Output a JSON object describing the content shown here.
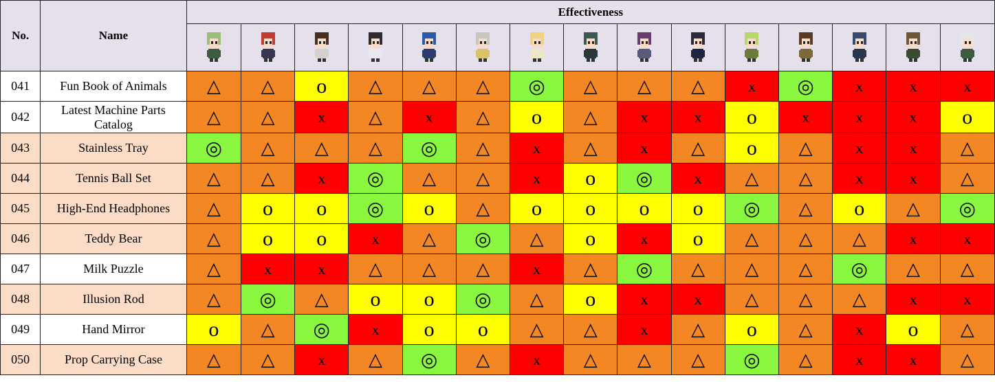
{
  "header": {
    "no": "No.",
    "name": "Name",
    "effectiveness": "Effectiveness"
  },
  "characters": [
    {
      "icon": "character-1-icon",
      "hair": "#9bbd7a",
      "outfit": "#3f5b3f"
    },
    {
      "icon": "character-2-icon",
      "hair": "#c43a31",
      "outfit": "#3a3550"
    },
    {
      "icon": "character-3-icon",
      "hair": "#4a2e22",
      "outfit": "#d8d0cc"
    },
    {
      "icon": "character-4-icon",
      "hair": "#2f2a30",
      "outfit": "#e9e9ef"
    },
    {
      "icon": "character-5-icon",
      "hair": "#2c58a8",
      "outfit": "#2b3b6b"
    },
    {
      "icon": "character-6-icon",
      "hair": "#c9c6c1",
      "outfit": "#d9c26a"
    },
    {
      "icon": "character-7-icon",
      "hair": "#f1d37e",
      "outfit": "#efe6c8"
    },
    {
      "icon": "character-8-icon",
      "hair": "#3b5a55",
      "outfit": "#2a3838"
    },
    {
      "icon": "character-9-icon",
      "hair": "#6a3b6e",
      "outfit": "#5a5a7a"
    },
    {
      "icon": "character-10-icon",
      "hair": "#2c2a3a",
      "outfit": "#1f2440"
    },
    {
      "icon": "character-11-icon",
      "hair": "#b9d66a",
      "outfit": "#6c7a3a"
    },
    {
      "icon": "character-12-icon",
      "hair": "#5a3a22",
      "outfit": "#7a6a3a"
    },
    {
      "icon": "character-13-icon",
      "hair": "#3a4a6a",
      "outfit": "#2a3550"
    },
    {
      "icon": "character-14-icon",
      "hair": "#6a5a3a",
      "outfit": "#3a4a30"
    },
    {
      "icon": "character-15-icon",
      "hair": "#e6e6e6",
      "outfit": "#3f5b3f"
    }
  ],
  "legend_colors": {
    "triangle": "#f38724",
    "o": "#ffff00",
    "x": "#ff0000",
    "double_circle": "#88f73d"
  },
  "rows": [
    {
      "no": "041",
      "name": "Fun Book of Animals",
      "shade": "white",
      "marks": [
        "△",
        "△",
        "o",
        "△",
        "△",
        "△",
        "◎",
        "△",
        "△",
        "△",
        "x",
        "◎",
        "x",
        "x",
        "x"
      ]
    },
    {
      "no": "042",
      "name": "Latest Machine Parts Catalog",
      "shade": "white",
      "marks": [
        "△",
        "△",
        "x",
        "△",
        "x",
        "△",
        "o",
        "△",
        "x",
        "x",
        "o",
        "x",
        "x",
        "x",
        "o"
      ]
    },
    {
      "no": "043",
      "name": "Stainless Tray",
      "shade": "peach",
      "marks": [
        "◎",
        "△",
        "△",
        "△",
        "◎",
        "△",
        "x",
        "△",
        "x",
        "△",
        "o",
        "△",
        "x",
        "x",
        "△"
      ]
    },
    {
      "no": "044",
      "name": "Tennis Ball Set",
      "shade": "peach",
      "marks": [
        "△",
        "△",
        "x",
        "◎",
        "△",
        "△",
        "x",
        "o",
        "◎",
        "x",
        "△",
        "△",
        "x",
        "x",
        "△"
      ]
    },
    {
      "no": "045",
      "name": "High-End Headphones",
      "shade": "peach",
      "marks": [
        "△",
        "o",
        "o",
        "◎",
        "o",
        "△",
        "o",
        "o",
        "o",
        "o",
        "◎",
        "△",
        "o",
        "△",
        "◎"
      ]
    },
    {
      "no": "046",
      "name": "Teddy Bear",
      "shade": "peach",
      "marks": [
        "△",
        "o",
        "o",
        "x",
        "△",
        "◎",
        "△",
        "o",
        "x",
        "o",
        "△",
        "△",
        "△",
        "x",
        "x"
      ]
    },
    {
      "no": "047",
      "name": "Milk Puzzle",
      "shade": "white",
      "marks": [
        "△",
        "x",
        "x",
        "△",
        "△",
        "△",
        "x",
        "△",
        "◎",
        "△",
        "△",
        "△",
        "◎",
        "△",
        "△"
      ]
    },
    {
      "no": "048",
      "name": "Illusion Rod",
      "shade": "peach",
      "marks": [
        "△",
        "◎",
        "△",
        "o",
        "o",
        "◎",
        "△",
        "o",
        "x",
        "x",
        "△",
        "△",
        "△",
        "x",
        "x"
      ]
    },
    {
      "no": "049",
      "name": "Hand Mirror",
      "shade": "white",
      "marks": [
        "o",
        "△",
        "◎",
        "x",
        "o",
        "o",
        "△",
        "△",
        "x",
        "△",
        "o",
        "△",
        "x",
        "o",
        "△"
      ]
    },
    {
      "no": "050",
      "name": "Prop Carrying Case",
      "shade": "peach",
      "marks": [
        "△",
        "△",
        "x",
        "△",
        "◎",
        "△",
        "x",
        "△",
        "△",
        "△",
        "◎",
        "△",
        "x",
        "x",
        "△"
      ]
    }
  ]
}
